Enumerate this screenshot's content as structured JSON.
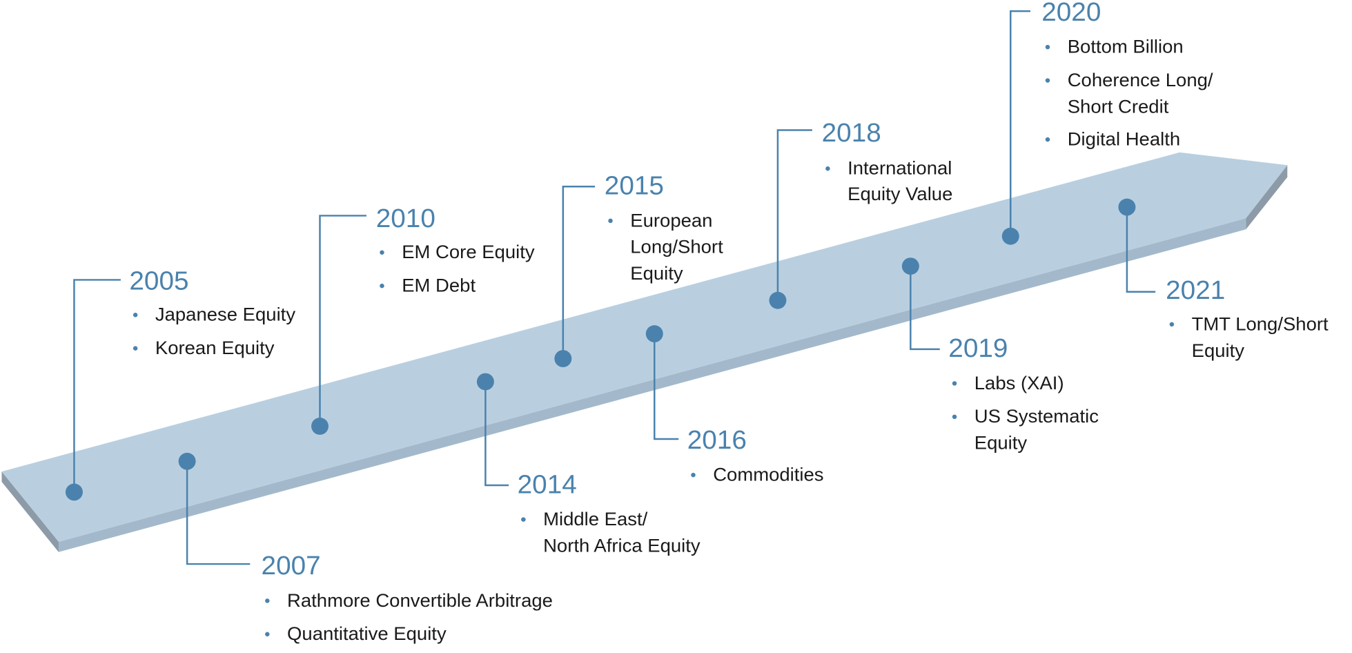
{
  "timeline": {
    "events": [
      {
        "year": "2005",
        "items": [
          [
            "Japanese Equity"
          ],
          [
            "Korean Equity"
          ]
        ]
      },
      {
        "year": "2007",
        "items": [
          [
            "Rathmore Convertible Arbitrage"
          ],
          [
            "Quantitative Equity"
          ]
        ]
      },
      {
        "year": "2010",
        "items": [
          [
            "EM Core Equity"
          ],
          [
            "EM Debt"
          ]
        ]
      },
      {
        "year": "2014",
        "items": [
          [
            "Middle East/",
            "North Africa Equity"
          ]
        ]
      },
      {
        "year": "2015",
        "items": [
          [
            "European",
            "Long/Short",
            "Equity"
          ]
        ]
      },
      {
        "year": "2016",
        "items": [
          [
            "Commodities"
          ]
        ]
      },
      {
        "year": "2018",
        "items": [
          [
            "International",
            "Equity Value"
          ]
        ]
      },
      {
        "year": "2019",
        "items": [
          [
            "Labs (XAI)"
          ],
          [
            "US Systematic",
            "Equity"
          ]
        ]
      },
      {
        "year": "2020",
        "items": [
          [
            "Bottom Billion"
          ],
          [
            "Coherence Long/",
            "Short Credit"
          ],
          [
            "Digital Health"
          ]
        ]
      },
      {
        "year": "2021",
        "items": [
          [
            "TMT Long/Short",
            "Equity"
          ]
        ]
      }
    ]
  }
}
